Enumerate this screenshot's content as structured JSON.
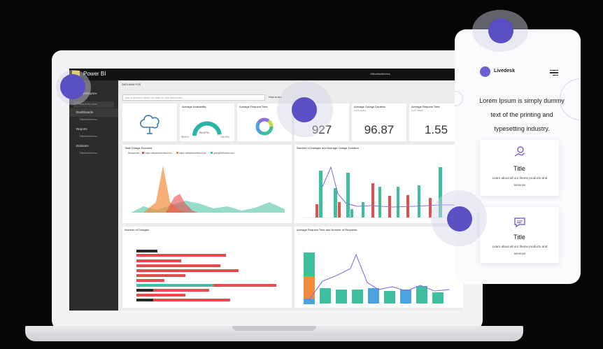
{
  "app": {
    "title": "Power BI",
    "topbar_center": "OfficeBizMetrics"
  },
  "sidebar": {
    "workspace_label": "My Workspace",
    "search_placeholder": "Search by name",
    "items": [
      {
        "label": "Dashboards",
        "sub": "OfficeBizMetrics"
      },
      {
        "label": "Reports",
        "sub": "OfficeBizMetrics"
      },
      {
        "label": "Datasets",
        "sub": "OfficeBizMetrics"
      }
    ]
  },
  "dashboard": {
    "label": "DATA ANALYSIS",
    "qa_placeholder": "Ask a question about the data on this dashboard",
    "qa_link": "How to ask"
  },
  "tiles": {
    "availability_title": "Average Availability",
    "availability_value": "99.37%",
    "availability_min": "95.00%",
    "availability_max": "100.00%",
    "request_time_title": "Average Request Time",
    "kpi1_title": "Outages",
    "kpi1_value": "927",
    "kpi2_title": "Average Outage Duration",
    "kpi2_sub": "LAST WEEK",
    "kpi2_value": "96.87",
    "kpi3_title": "Average Request Time",
    "kpi3_sub": "LAST WEEK",
    "kpi3_value": "1.55",
    "chart1_title": "Total Outage Seconds",
    "chart2_title": "Number of Outages and Average Outage Duration",
    "chart3_title": "Number of Outages",
    "chart4_title": "Average Request Time and Number of Requests",
    "legend_label": "ResourceId",
    "legend_items": [
      "https://officebizmetrics.blob...",
      "https://officebizmetrics.blob...",
      "queryBizMetrics.com"
    ]
  },
  "phone": {
    "brand": "Livedesk",
    "headline": "Lorem Ipsum is simply dummy text of the printing and typesetting industry.",
    "cards": [
      {
        "icon": "hand-chart-icon",
        "title": "Title",
        "body": "Learn about all our theme products and services"
      },
      {
        "icon": "chat-icon",
        "title": "Title",
        "body": "Learn about all our theme products and services"
      }
    ]
  },
  "colors": {
    "accent": "#5b4fc4",
    "teal": "#3ebf9f",
    "orange": "#f28c3a",
    "red": "#e84b4b",
    "purple": "#8b6fe0"
  }
}
